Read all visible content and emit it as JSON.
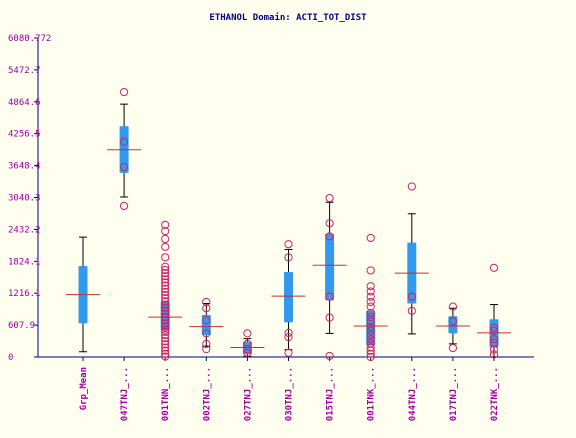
{
  "chart_data": {
    "type": "box",
    "title": "ETHANOL Domain: ACTI_TOT_DIST",
    "xlabel": "",
    "ylabel": "",
    "ylim": [
      0,
      6080.772
    ],
    "y_ticks": [
      {
        "value": 0,
        "label": "0"
      },
      {
        "value": 607.9,
        "label": "607.9"
      },
      {
        "value": 1216.1,
        "label": "1216.1"
      },
      {
        "value": 1824.1,
        "label": "1824.1"
      },
      {
        "value": 2432.2,
        "label": "2432.2"
      },
      {
        "value": 3040.3,
        "label": "3040.3"
      },
      {
        "value": 3648.4,
        "label": "3648.4"
      },
      {
        "value": 4256.5,
        "label": "4256.5"
      },
      {
        "value": 4864.6,
        "label": "4864.6"
      },
      {
        "value": 5472.7,
        "label": "5472.7"
      },
      {
        "value": 6080.772,
        "label": "6080.772"
      }
    ],
    "categories": [
      "Grp_Mean",
      "047TNJ_...",
      "001TNN_...",
      "002TNJ_...",
      "027TNJ_...",
      "030TNJ_...",
      "015TNJ_...",
      "001TNK_...",
      "044TNJ_...",
      "017TNJ_...",
      "022TNK_..."
    ],
    "boxes": [
      {
        "category": "Grp_Mean",
        "whisker_low": 100,
        "q1": 640,
        "median": 1190,
        "q3": 1735,
        "whisker_high": 2285,
        "outliers": []
      },
      {
        "category": "047TNJ_...",
        "whisker_low": 3050,
        "q1": 3510,
        "median": 3950,
        "q3": 4400,
        "whisker_high": 4820,
        "outliers": [
          2880,
          3620,
          4100,
          5050
        ]
      },
      {
        "category": "001TNN_...",
        "whisker_low": null,
        "q1": 500,
        "median": 760,
        "q3": 1050,
        "whisker_high": null,
        "outliers": [
          10,
          60,
          120,
          180,
          240,
          300,
          360,
          420,
          480,
          520,
          580,
          640,
          700,
          760,
          820,
          880,
          940,
          1000,
          1060,
          1120,
          1180,
          1240,
          1300,
          1360,
          1420,
          1480,
          1540,
          1600,
          1660,
          1720,
          1900,
          2100,
          2250,
          2400,
          2520
        ]
      },
      {
        "category": "002TNJ_...",
        "whisker_low": 200,
        "q1": 420,
        "median": 580,
        "q3": 800,
        "whisker_high": 1020,
        "outliers": [
          150,
          250,
          450,
          700,
          930,
          1050
        ]
      },
      {
        "category": "027TNJ_...",
        "whisker_low": 10,
        "q1": 50,
        "median": 180,
        "q3": 290,
        "whisker_high": 350,
        "outliers": [
          80,
          150,
          250,
          450
        ]
      },
      {
        "category": "030TNJ_...",
        "whisker_low": 140,
        "q1": 660,
        "median": 1160,
        "q3": 1620,
        "whisker_high": 2050,
        "outliers": [
          80,
          380,
          460,
          1900,
          2150
        ]
      },
      {
        "category": "015TNJ_...",
        "whisker_low": 450,
        "q1": 1080,
        "median": 1750,
        "q3": 2350,
        "whisker_high": 2950,
        "outliers": [
          20,
          750,
          1150,
          2300,
          2550,
          3030
        ]
      },
      {
        "category": "001TNK_...",
        "whisker_low": null,
        "q1": 220,
        "median": 590,
        "q3": 880,
        "whisker_high": null,
        "outliers": [
          0,
          60,
          120,
          180,
          260,
          340,
          420,
          500,
          580,
          680,
          760,
          840,
          960,
          1050,
          1150,
          1250,
          1350,
          1650,
          2270
        ]
      },
      {
        "category": "044TNJ_...",
        "whisker_low": 440,
        "q1": 1020,
        "median": 1600,
        "q3": 2180,
        "whisker_high": 2730,
        "outliers": [
          880,
          1150,
          3250
        ]
      },
      {
        "category": "017TNJ_...",
        "whisker_low": 250,
        "q1": 450,
        "median": 590,
        "q3": 780,
        "whisker_high": 930,
        "outliers": [
          170,
          680,
          960
        ]
      },
      {
        "category": "022TNK_...",
        "whisker_low": 0,
        "q1": 180,
        "median": 460,
        "q3": 720,
        "whisker_high": 1000,
        "outliers": [
          50,
          140,
          270,
          340,
          500,
          560,
          1700
        ]
      }
    ],
    "colors": {
      "background": "#fffff0",
      "axis": "#000080",
      "box": "#3399ee",
      "median": "#c03030",
      "outlier": "#cc2266",
      "whisker": "#000000",
      "tick_label": "#a000a0"
    },
    "grid": false
  }
}
